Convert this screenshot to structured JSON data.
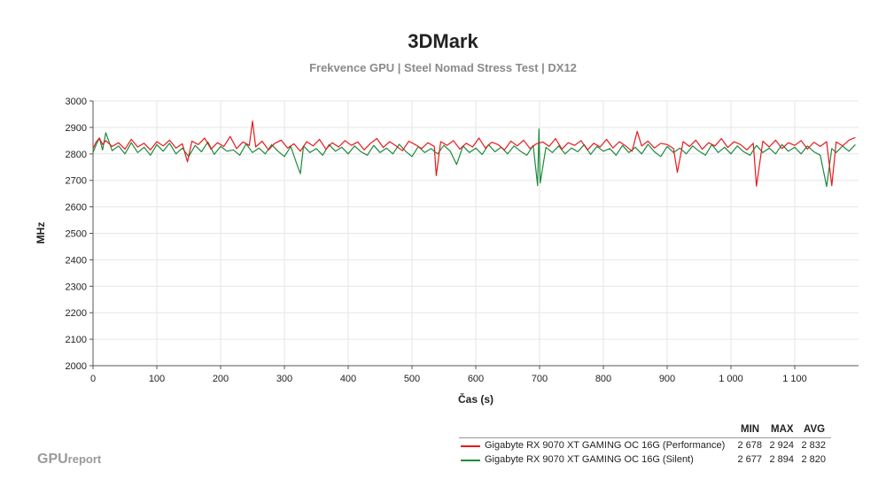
{
  "chart_data": {
    "type": "line",
    "title": "3DMark",
    "subtitle": "Frekvence GPU | Steel Nomad Stress Test | DX12",
    "xlabel": "Čas (s)",
    "ylabel": "MHz",
    "xlim": [
      0,
      1200
    ],
    "ylim": [
      2000,
      3000
    ],
    "x_ticks": [
      0,
      100,
      200,
      300,
      400,
      500,
      600,
      700,
      800,
      900,
      1000,
      1100
    ],
    "x_tick_labels": [
      "0",
      "100",
      "200",
      "300",
      "400",
      "500",
      "600",
      "700",
      "800",
      "900",
      "1 000",
      "1 100"
    ],
    "y_ticks": [
      2000,
      2100,
      2200,
      2300,
      2400,
      2500,
      2600,
      2700,
      2800,
      2900,
      3000
    ],
    "y_tick_labels": [
      "2000",
      "2100",
      "2200",
      "2300",
      "2400",
      "2500",
      "2600",
      "2700",
      "2800",
      "2900",
      "3000"
    ],
    "grid": true,
    "legend_position": "bottom-right",
    "series": [
      {
        "name": "Gigabyte RX 9070 XT GAMING OC 16G (Performance)",
        "color": "#e8191b",
        "min": "2 678",
        "max": "2 924",
        "avg": "2 832",
        "x": [
          0,
          5,
          10,
          15,
          20,
          30,
          40,
          50,
          60,
          70,
          80,
          90,
          100,
          110,
          120,
          130,
          140,
          148,
          155,
          165,
          175,
          185,
          195,
          205,
          215,
          225,
          235,
          245,
          250,
          255,
          265,
          275,
          285,
          295,
          305,
          315,
          325,
          335,
          345,
          355,
          365,
          375,
          385,
          395,
          405,
          415,
          425,
          435,
          445,
          455,
          465,
          475,
          485,
          495,
          505,
          515,
          525,
          535,
          538,
          545,
          555,
          565,
          575,
          585,
          595,
          605,
          615,
          625,
          635,
          645,
          655,
          665,
          675,
          685,
          695,
          705,
          715,
          725,
          735,
          745,
          755,
          765,
          775,
          785,
          795,
          805,
          815,
          825,
          835,
          845,
          853,
          860,
          870,
          880,
          890,
          900,
          910,
          916,
          925,
          935,
          945,
          955,
          965,
          975,
          985,
          995,
          1005,
          1015,
          1025,
          1035,
          1040,
          1050,
          1060,
          1070,
          1080,
          1090,
          1100,
          1110,
          1120,
          1130,
          1140,
          1150,
          1158,
          1165,
          1175,
          1185,
          1195
        ],
        "y": [
          2820,
          2845,
          2860,
          2835,
          2850,
          2828,
          2842,
          2818,
          2855,
          2826,
          2840,
          2815,
          2846,
          2830,
          2852,
          2822,
          2838,
          2770,
          2848,
          2835,
          2860,
          2818,
          2842,
          2828,
          2866,
          2820,
          2845,
          2832,
          2924,
          2826,
          2848,
          2815,
          2840,
          2852,
          2822,
          2838,
          2810,
          2846,
          2830,
          2855,
          2818,
          2842,
          2826,
          2850,
          2832,
          2845,
          2815,
          2840,
          2858,
          2824,
          2846,
          2830,
          2812,
          2848,
          2835,
          2820,
          2842,
          2828,
          2718,
          2846,
          2832,
          2850,
          2818,
          2840,
          2826,
          2860,
          2822,
          2844,
          2835,
          2815,
          2848,
          2830,
          2852,
          2820,
          2838,
          2845,
          2828,
          2858,
          2818,
          2842,
          2832,
          2850,
          2815,
          2840,
          2826,
          2855,
          2822,
          2846,
          2830,
          2810,
          2885,
          2830,
          2848,
          2822,
          2840,
          2835,
          2820,
          2730,
          2846,
          2828,
          2852,
          2818,
          2842,
          2830,
          2858,
          2824,
          2846,
          2835,
          2815,
          2840,
          2678,
          2848,
          2826,
          2852,
          2820,
          2842,
          2832,
          2850,
          2818,
          2844,
          2828,
          2846,
          2680,
          2845,
          2830,
          2852,
          2862
        ]
      },
      {
        "name": "Gigabyte RX 9070 XT GAMING OC 16G (Silent)",
        "color": "#1a8a3c",
        "min": "2 677",
        "max": "2 894",
        "avg": "2 820",
        "x": [
          0,
          5,
          10,
          15,
          20,
          30,
          40,
          50,
          60,
          70,
          80,
          90,
          100,
          110,
          120,
          130,
          140,
          150,
          160,
          170,
          180,
          190,
          200,
          210,
          220,
          230,
          240,
          250,
          260,
          270,
          280,
          290,
          300,
          310,
          320,
          325,
          330,
          340,
          350,
          360,
          370,
          380,
          390,
          400,
          410,
          420,
          430,
          440,
          450,
          460,
          470,
          480,
          490,
          500,
          510,
          520,
          530,
          540,
          550,
          560,
          570,
          580,
          590,
          600,
          610,
          620,
          630,
          640,
          650,
          660,
          670,
          680,
          690,
          697,
          699,
          701,
          710,
          720,
          730,
          740,
          750,
          760,
          770,
          780,
          790,
          800,
          810,
          820,
          830,
          840,
          850,
          860,
          870,
          880,
          890,
          900,
          910,
          920,
          930,
          940,
          950,
          960,
          970,
          980,
          990,
          1000,
          1010,
          1020,
          1030,
          1040,
          1050,
          1060,
          1070,
          1080,
          1090,
          1100,
          1110,
          1120,
          1130,
          1140,
          1150,
          1158,
          1165,
          1175,
          1185,
          1195
        ],
        "y": [
          2805,
          2835,
          2860,
          2815,
          2880,
          2812,
          2830,
          2800,
          2842,
          2805,
          2825,
          2795,
          2835,
          2810,
          2840,
          2800,
          2822,
          2790,
          2832,
          2808,
          2845,
          2798,
          2828,
          2810,
          2815,
          2795,
          2838,
          2805,
          2822,
          2800,
          2835,
          2810,
          2790,
          2828,
          2758,
          2725,
          2830,
          2805,
          2820,
          2795,
          2835,
          2810,
          2825,
          2800,
          2830,
          2808,
          2795,
          2832,
          2805,
          2822,
          2800,
          2836,
          2810,
          2790,
          2828,
          2805,
          2820,
          2800,
          2832,
          2810,
          2760,
          2830,
          2805,
          2822,
          2798,
          2835,
          2808,
          2825,
          2800,
          2830,
          2810,
          2795,
          2832,
          2680,
          2894,
          2690,
          2825,
          2805,
          2830,
          2800,
          2822,
          2808,
          2835,
          2798,
          2828,
          2810,
          2820,
          2795,
          2832,
          2805,
          2825,
          2800,
          2836,
          2808,
          2790,
          2828,
          2805,
          2822,
          2800,
          2830,
          2810,
          2795,
          2835,
          2805,
          2825,
          2800,
          2830,
          2808,
          2795,
          2832,
          2805,
          2822,
          2800,
          2835,
          2810,
          2825,
          2800,
          2830,
          2808,
          2795,
          2677,
          2820,
          2805,
          2830,
          2810,
          2835
        ]
      }
    ]
  },
  "stats_header": {
    "min": "MIN",
    "max": "MAX",
    "avg": "AVG"
  },
  "logo": {
    "main": "GPU",
    "small": "report"
  }
}
